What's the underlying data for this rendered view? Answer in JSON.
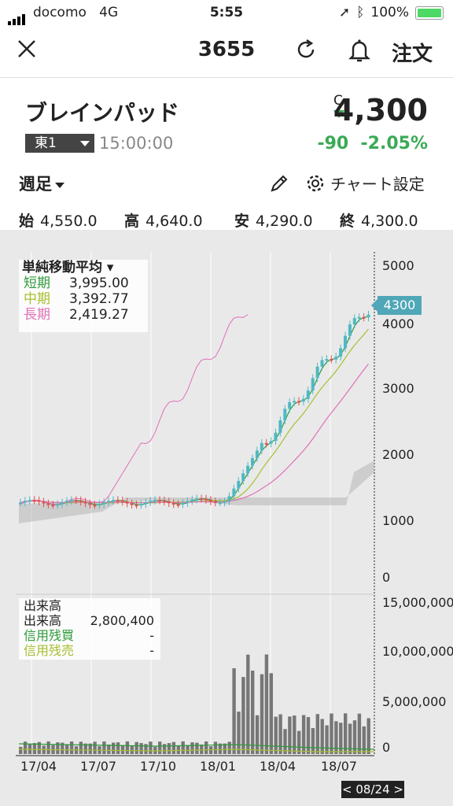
{
  "status": {
    "carrier": "docomo",
    "network": "4G",
    "time": "5:55",
    "battery": "100%"
  },
  "nav": {
    "title": "3655",
    "order_label": "注文"
  },
  "quote": {
    "name": "ブレインパッド",
    "exchange": "東1",
    "time": "15:00:00",
    "c_mark": "C",
    "price": "4,300",
    "change": "-90",
    "change_pct": "-2.05%"
  },
  "sub": {
    "period": "週足",
    "settings": "チャート設定"
  },
  "ohlc": {
    "open_label": "始",
    "open": "4,550.0",
    "high_label": "高",
    "high": "4,640.0",
    "low_label": "安",
    "low": "4,290.0",
    "close_label": "終",
    "close": "4,300.0"
  },
  "ma_legend": {
    "title": "単純移動平均",
    "short_label": "短期",
    "short_value": "3,995.00",
    "mid_label": "中期",
    "mid_value": "3,392.77",
    "long_label": "長期",
    "long_value": "2,419.27",
    "short_color": "#2e9a3a",
    "mid_color": "#a6c030",
    "long_color": "#e070b8"
  },
  "vol_legend": {
    "title": "出来高",
    "vol_label": "出来高",
    "vol_value": "2,800,400",
    "buy_label": "信用残買",
    "buy_value": "-",
    "sell_label": "信用残売",
    "sell_value": "-"
  },
  "chart": {
    "price_tag": "4300",
    "y_labels": [
      "5000",
      "4000",
      "3000",
      "2000",
      "1000",
      "0"
    ],
    "vol_labels": [
      "15,000,000",
      "10,000,000",
      "5,000,000",
      "0"
    ],
    "x_labels": [
      "17/04",
      "17/07",
      "17/10",
      "18/01",
      "18/04",
      "18/07"
    ],
    "date_chip": "< 08/24 >"
  }
}
